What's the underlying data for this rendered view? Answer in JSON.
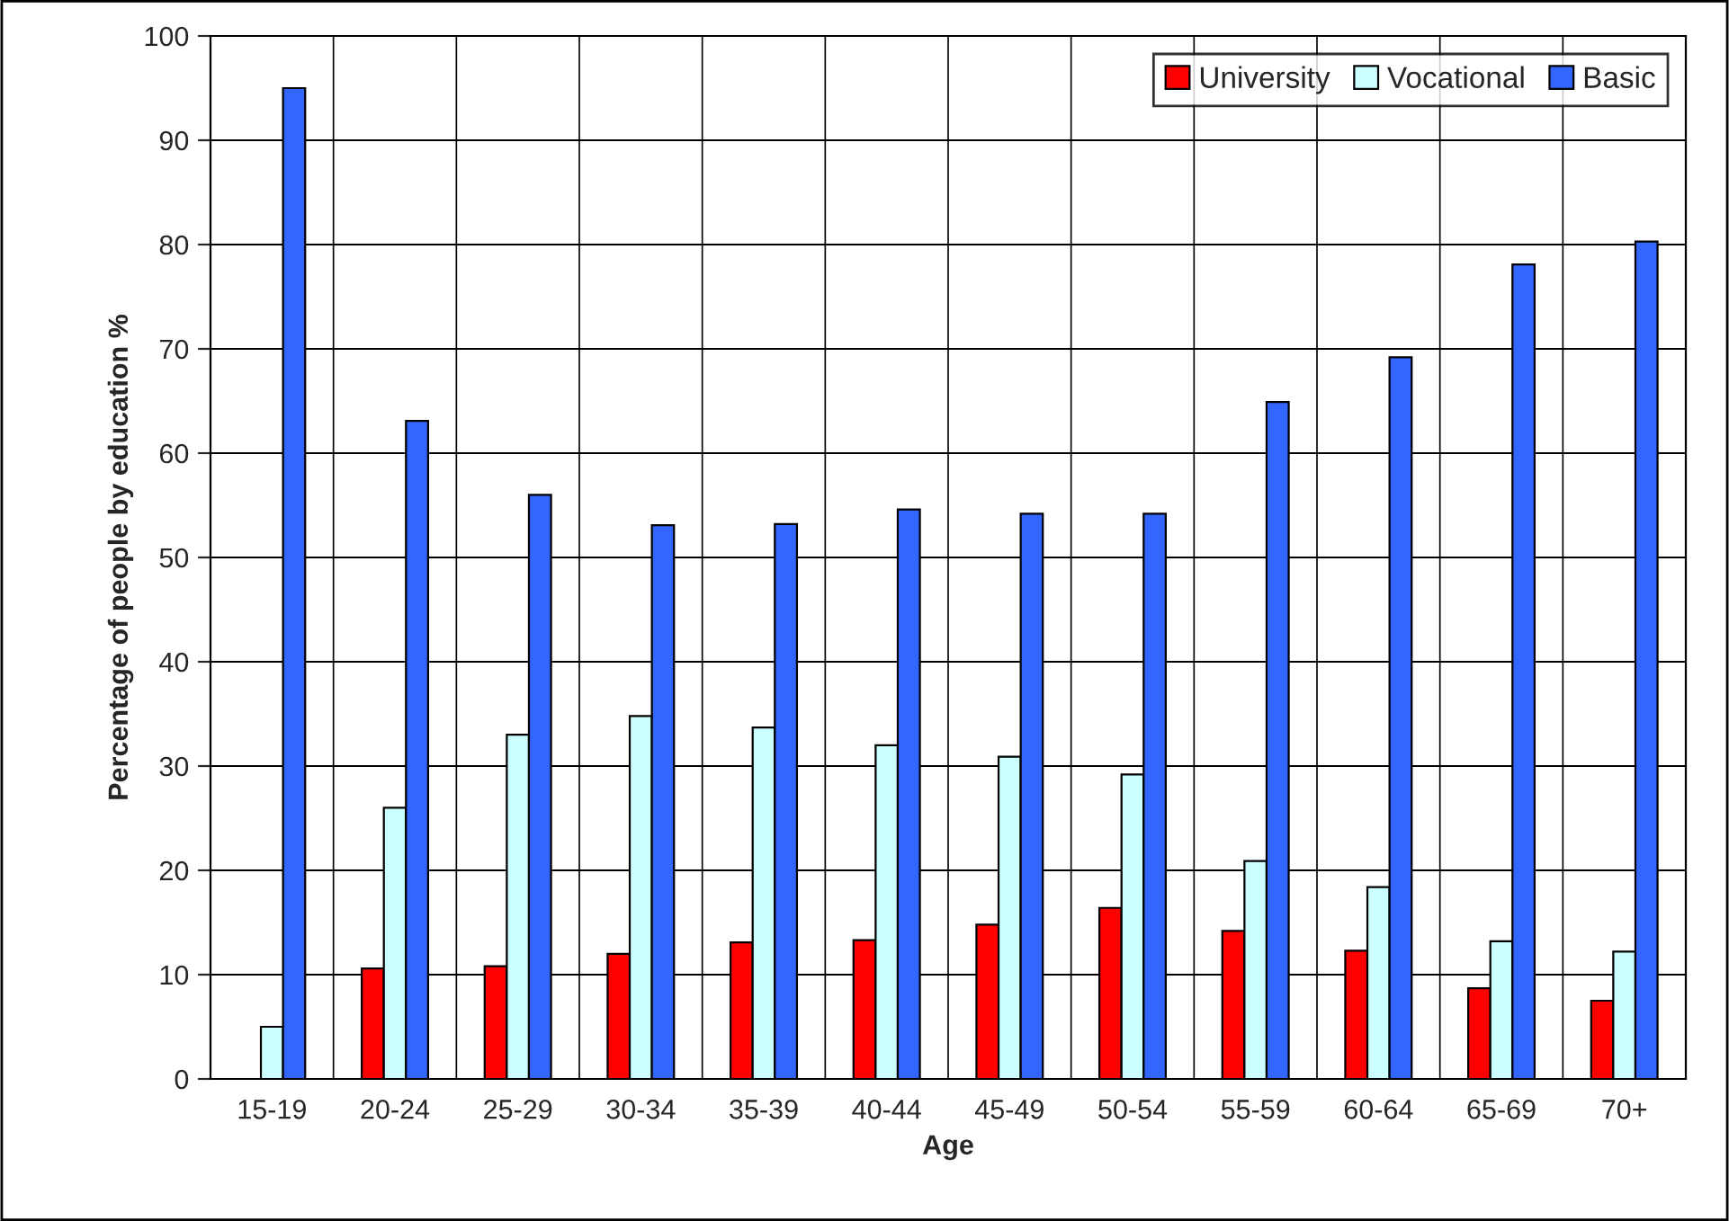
{
  "chart_data": {
    "type": "bar",
    "xlabel": "Age",
    "ylabel": "Percentage of people by education %",
    "categories": [
      "15-19",
      "20-24",
      "25-29",
      "30-34",
      "35-39",
      "40-44",
      "45-49",
      "50-54",
      "55-59",
      "60-64",
      "65-69",
      "70+"
    ],
    "series": [
      {
        "name": "University",
        "color": "#ff0000",
        "values": [
          null,
          10.6,
          10.8,
          12.0,
          13.1,
          13.3,
          14.8,
          16.4,
          14.2,
          12.3,
          8.7,
          7.5
        ]
      },
      {
        "name": "Vocational",
        "color": "#ccffff",
        "values": [
          5.0,
          26.0,
          33.0,
          34.8,
          33.7,
          32.0,
          30.9,
          29.2,
          20.9,
          18.4,
          13.2,
          12.2
        ]
      },
      {
        "name": "Basic",
        "color": "#3366ff",
        "values": [
          95.0,
          63.1,
          56.0,
          53.1,
          53.2,
          54.6,
          54.2,
          54.2,
          64.9,
          69.2,
          78.1,
          80.3
        ]
      }
    ],
    "ylim": [
      0,
      100
    ],
    "yticks": [
      0,
      10,
      20,
      30,
      40,
      50,
      60,
      70,
      80,
      90,
      100
    ],
    "grid": true,
    "legend": "top right"
  }
}
